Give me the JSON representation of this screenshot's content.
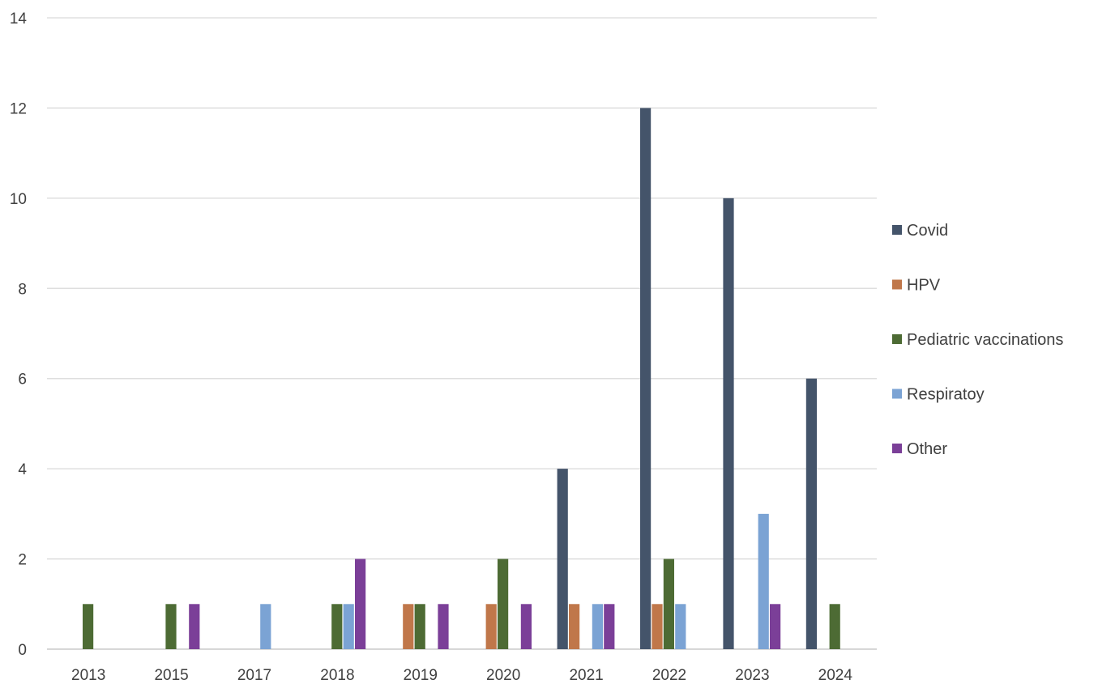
{
  "chart_data": {
    "type": "bar",
    "categories": [
      "2013",
      "2015",
      "2017",
      "2018",
      "2019",
      "2020",
      "2021",
      "2022",
      "2023",
      "2024"
    ],
    "series": [
      {
        "name": "Covid",
        "color": "#44546a",
        "values": [
          0,
          0,
          0,
          0,
          0,
          0,
          4,
          12,
          10,
          6
        ]
      },
      {
        "name": "HPV",
        "color": "#c0774a",
        "values": [
          0,
          0,
          0,
          0,
          1,
          1,
          1,
          1,
          0,
          0
        ]
      },
      {
        "name": "Pediatric vaccinations",
        "color": "#4d6b34",
        "values": [
          1,
          1,
          0,
          1,
          1,
          2,
          0,
          2,
          0,
          1
        ]
      },
      {
        "name": "Respiratoy",
        "color": "#7ba3d4",
        "values": [
          0,
          0,
          1,
          1,
          0,
          0,
          1,
          1,
          3,
          0
        ]
      },
      {
        "name": "Other",
        "color": "#7b3f98",
        "values": [
          0,
          1,
          0,
          2,
          1,
          1,
          1,
          0,
          1,
          0
        ]
      }
    ],
    "ylim": [
      0,
      14
    ],
    "yticks": [
      0,
      2,
      4,
      6,
      8,
      10,
      12,
      14
    ],
    "grid": true,
    "legend_position": "right"
  }
}
